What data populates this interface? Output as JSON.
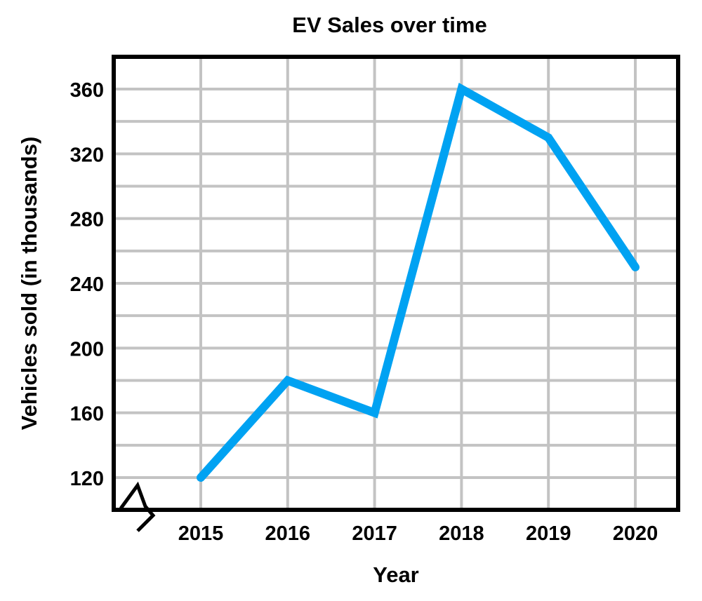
{
  "chart_data": {
    "type": "line",
    "title": "EV Sales over time",
    "xlabel": "Year",
    "ylabel": "Vehicles sold (in thousands)",
    "categories": [
      "2015",
      "2016",
      "2017",
      "2018",
      "2019",
      "2020"
    ],
    "series": [
      {
        "name": "EV Sales",
        "values": [
          120,
          180,
          160,
          360,
          330,
          250
        ],
        "color": "#00a2f2"
      }
    ],
    "yticks": [
      120,
      160,
      200,
      240,
      280,
      320,
      360
    ],
    "ylim": [
      100,
      390
    ],
    "grid": true,
    "axis_break": true
  },
  "colors": {
    "grid": "#c3c3c3",
    "axis": "#000000",
    "background": "#ffffff"
  }
}
